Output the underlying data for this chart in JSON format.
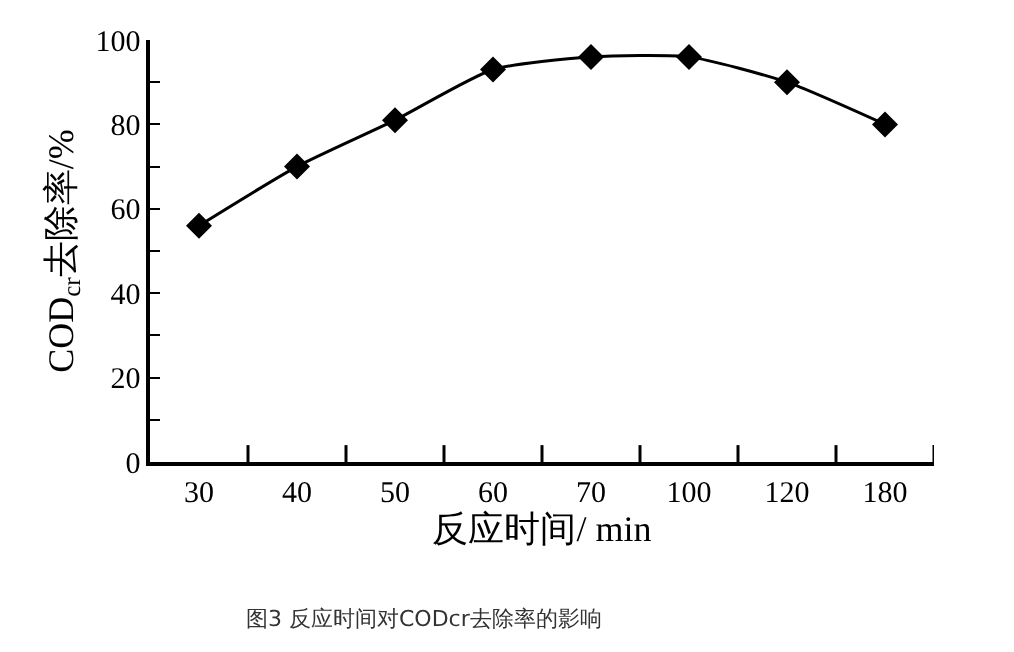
{
  "chart_data": {
    "type": "line",
    "categories": [
      "30",
      "40",
      "50",
      "60",
      "70",
      "100",
      "120",
      "180"
    ],
    "values": [
      56,
      70,
      81,
      93,
      96,
      96,
      90,
      80
    ],
    "color": "#000000",
    "marker": "diamond",
    "line_style": "solid",
    "legend": false,
    "xlabel": "反应时间/ min",
    "ylabel": "COD$_{cr}$去除率/%",
    "ylim": [
      0,
      100
    ],
    "yticks": [
      0,
      {
        "value": 10,
        "label": null
      },
      20,
      {
        "value": 30,
        "label": null
      },
      40,
      {
        "value": 50,
        "label": null
      },
      60,
      {
        "value": 70,
        "label": null
      },
      80,
      {
        "value": 90,
        "label": null
      },
      100
    ],
    "annotations": [
      "图3 反应时间对CODcr去除率的影响"
    ]
  }
}
